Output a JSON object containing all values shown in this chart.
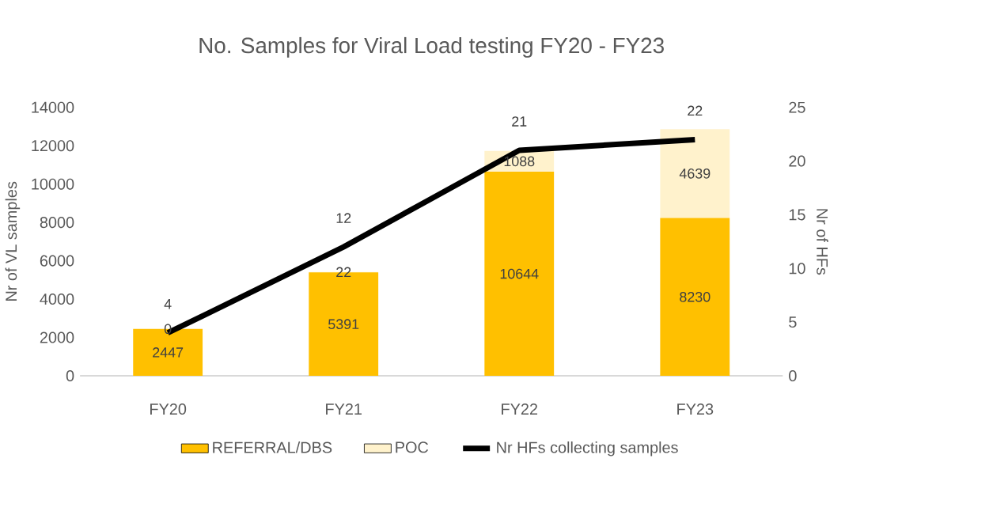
{
  "chart_data": {
    "type": "bar",
    "title": "No. Samples for Viral Load testing FY20 - FY23",
    "ylabel": "Nr of VL samples",
    "y2label": "Nr of HFs",
    "categories": [
      "FY20",
      "FY21",
      "FY22",
      "FY23"
    ],
    "stacked": true,
    "data_labels": true,
    "legend": "bottom",
    "grid": false,
    "ylim": [
      0,
      14000
    ],
    "yticks": [
      0,
      2000,
      4000,
      6000,
      8000,
      10000,
      12000,
      14000
    ],
    "y2lim": [
      0,
      25
    ],
    "y2ticks": [
      0,
      5,
      10,
      15,
      20,
      25
    ],
    "series": [
      {
        "name": "REFERRAL/DBS",
        "color": "#ffc000",
        "values": [
          2447,
          5391,
          10644,
          8230
        ]
      },
      {
        "name": "POC",
        "color": "#fff2cc",
        "values": [
          0,
          22,
          1088,
          4639
        ]
      },
      {
        "name": "Nr HFs collecting samples",
        "type": "line",
        "axis": "y2",
        "color": "#000000",
        "marker": "none",
        "line_style": "solid",
        "values": [
          4,
          12,
          21,
          22
        ]
      }
    ]
  }
}
